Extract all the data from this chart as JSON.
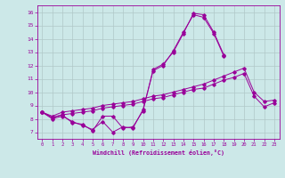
{
  "xlabel": "Windchill (Refroidissement éolien,°C)",
  "background_color": "#cce8e8",
  "grid_color": "#b0c8c8",
  "line_color": "#990099",
  "xlim": [
    -0.5,
    23.5
  ],
  "ylim": [
    6.5,
    16.5
  ],
  "yticks": [
    7,
    8,
    9,
    10,
    11,
    12,
    13,
    14,
    15,
    16
  ],
  "xticks": [
    0,
    1,
    2,
    3,
    4,
    5,
    6,
    7,
    8,
    9,
    10,
    11,
    12,
    13,
    14,
    15,
    16,
    17,
    18,
    19,
    20,
    21,
    22,
    23
  ],
  "series": [
    [
      8.5,
      8.1,
      8.3,
      7.7,
      7.6,
      7.1,
      8.2,
      8.2,
      7.3,
      7.4,
      8.6,
      11.7,
      12.1,
      13.0,
      14.4,
      15.9,
      15.8,
      14.5,
      12.8,
      null,
      null,
      null,
      null,
      null
    ],
    [
      8.5,
      8.0,
      8.2,
      7.8,
      7.5,
      7.2,
      7.8,
      7.0,
      7.4,
      7.3,
      8.7,
      11.6,
      12.0,
      13.1,
      14.5,
      15.8,
      15.6,
      14.4,
      12.7,
      null,
      null,
      null,
      null,
      null
    ],
    [
      8.5,
      8.2,
      8.5,
      8.6,
      8.7,
      8.8,
      9.0,
      9.1,
      9.2,
      9.3,
      9.5,
      9.7,
      9.8,
      10.0,
      10.2,
      10.4,
      10.6,
      10.9,
      11.2,
      11.5,
      11.8,
      10.0,
      9.3,
      9.4
    ],
    [
      8.5,
      8.1,
      8.3,
      8.4,
      8.5,
      8.6,
      8.8,
      8.9,
      9.0,
      9.1,
      9.3,
      9.5,
      9.6,
      9.8,
      10.0,
      10.2,
      10.3,
      10.6,
      10.9,
      11.1,
      11.4,
      9.7,
      8.9,
      9.2
    ]
  ]
}
